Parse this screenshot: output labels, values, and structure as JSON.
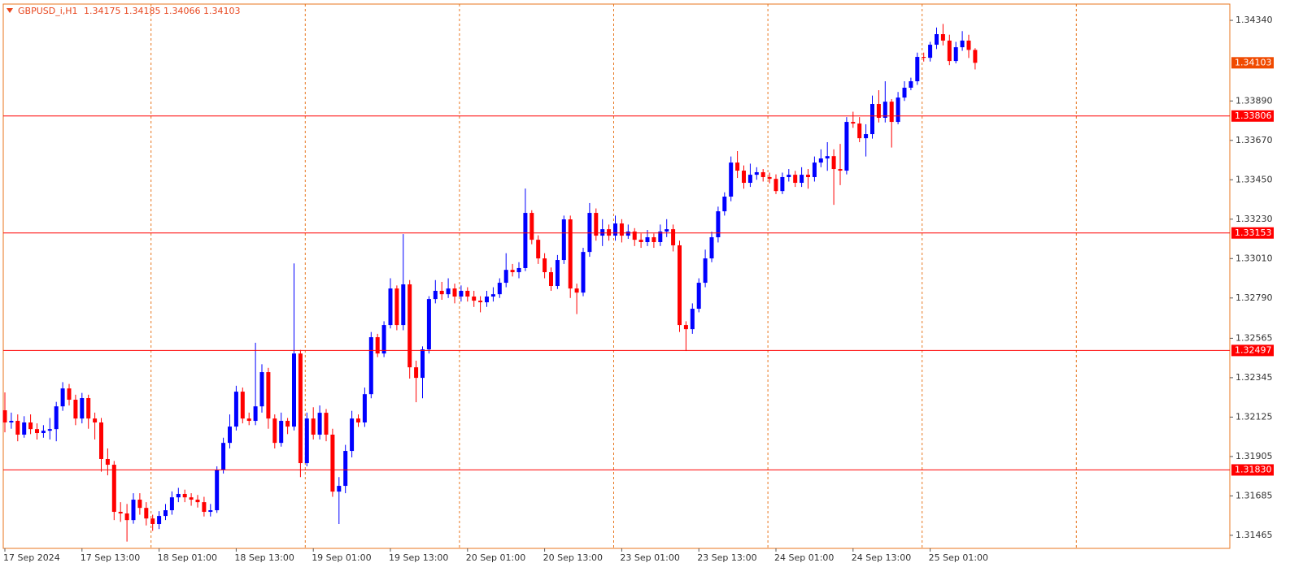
{
  "chart_data": {
    "type": "candlestick",
    "title": "GBPUSD_i,H1",
    "up_color": "#0000ff",
    "down_color": "#ff0000",
    "level_color": "#ff0000",
    "categories": [
      "17 Sep 2024",
      null,
      null,
      null,
      null,
      null,
      null,
      null,
      null,
      null,
      null,
      null,
      "17 Sep 13:00",
      null,
      null,
      null,
      null,
      null,
      null,
      null,
      null,
      null,
      null,
      null,
      "18 Sep 01:00",
      null,
      null,
      null,
      null,
      null,
      null,
      null,
      null,
      null,
      null,
      null,
      "18 Sep 13:00",
      null,
      null,
      null,
      null,
      null,
      null,
      null,
      null,
      null,
      null,
      null,
      "19 Sep 01:00",
      null,
      null,
      null,
      null,
      null,
      null,
      null,
      null,
      null,
      null,
      null,
      "19 Sep 13:00",
      null,
      null,
      null,
      null,
      null,
      null,
      null,
      null,
      null,
      null,
      null,
      "20 Sep 01:00",
      null,
      null,
      null,
      null,
      null,
      null,
      null,
      null,
      null,
      null,
      null,
      "20 Sep 13:00",
      null,
      null,
      null,
      null,
      null,
      null,
      null,
      null,
      null,
      null,
      null,
      "23 Sep 01:00",
      null,
      null,
      null,
      null,
      null,
      null,
      null,
      null,
      null,
      null,
      null,
      "23 Sep 13:00",
      null,
      null,
      null,
      null,
      null,
      null,
      null,
      null,
      null,
      null,
      null,
      "24 Sep 01:00",
      null,
      null,
      null,
      null,
      null,
      null,
      null,
      null,
      null,
      null,
      null,
      "24 Sep 13:00",
      null,
      null,
      null,
      null,
      null,
      null,
      null,
      null,
      null,
      null,
      null,
      "25 Sep 01:00",
      null,
      null,
      null,
      null,
      null,
      null,
      null
    ],
    "open": [
      1.32163,
      1.32095,
      1.32104,
      1.32027,
      1.32095,
      1.32058,
      1.32036,
      1.32049,
      1.32058,
      1.32185,
      1.32285,
      1.32222,
      1.32117,
      1.32231,
      1.32117,
      1.32095,
      1.31891,
      1.31859,
      1.31596,
      1.31587,
      1.3155,
      1.31664,
      1.31618,
      1.31559,
      1.31528,
      1.31573,
      1.31605,
      1.31677,
      1.31696,
      1.31677,
      1.31664,
      1.3165,
      1.31596,
      1.31605,
      1.31832,
      1.31981,
      1.32072,
      1.32267,
      1.32117,
      1.32104,
      1.32185,
      1.32376,
      1.32117,
      1.31981,
      1.32104,
      1.32072,
      1.3248,
      1.31868,
      1.32117,
      1.32027,
      1.32149,
      1.32027,
      1.31709,
      1.31741,
      1.31936,
      1.32117,
      1.32095,
      1.32253,
      1.32571,
      1.3248,
      1.32639,
      1.32843,
      1.32639,
      1.32866,
      1.32403,
      1.32344,
      1.32503,
      1.32784,
      1.3283,
      1.32811,
      1.32843,
      1.32798,
      1.3283,
      1.32798,
      1.32775,
      1.32766,
      1.32798,
      1.32811,
      1.32875,
      1.32947,
      1.32934,
      1.32957,
      1.33265,
      1.33115,
      1.33011,
      1.32934,
      1.32857,
      1.33002,
      1.33229,
      1.32843,
      1.3282,
      1.33047,
      1.33265,
      1.33138,
      1.33174,
      1.33138,
      1.33206,
      1.33138,
      1.33161,
      1.33115,
      1.33102,
      1.33129,
      1.33102,
      1.33161,
      1.33174,
      1.33084,
      1.32639,
      1.32616,
      1.3273,
      1.32875,
      1.33011,
      1.33129,
      1.33274,
      1.33356,
      1.33546,
      1.33501,
      1.33433,
      1.33478,
      1.33492,
      1.33465,
      1.33455,
      1.33387,
      1.33465,
      1.33478,
      1.33433,
      1.33478,
      1.33465,
      1.33546,
      1.33569,
      1.33582,
      1.3351,
      1.33501,
      1.33773,
      1.33764,
      1.33682,
      1.33705,
      1.33873,
      1.33796,
      1.33886,
      1.33773,
      1.33909,
      1.33964,
      1.34,
      1.34136,
      1.34131,
      1.34204,
      1.34263,
      1.34227,
      1.34113,
      1.3419,
      1.34227,
      1.34175
    ],
    "high": [
      1.32263,
      1.3215,
      1.3214,
      1.3213,
      1.3214,
      1.3209,
      1.3208,
      1.3212,
      1.3221,
      1.3232,
      1.3231,
      1.3225,
      1.3226,
      1.3225,
      1.3215,
      1.3212,
      1.3195,
      1.3188,
      1.3165,
      1.3164,
      1.317,
      1.317,
      1.3165,
      1.3158,
      1.316,
      1.3164,
      1.3171,
      1.3173,
      1.3172,
      1.317,
      1.3169,
      1.3168,
      1.3164,
      1.3185,
      1.3201,
      1.3214,
      1.323,
      1.3229,
      1.3215,
      1.3254,
      1.3242,
      1.324,
      1.3214,
      1.3215,
      1.3212,
      1.32983,
      1.325,
      1.3215,
      1.3218,
      1.3219,
      1.3217,
      1.3206,
      1.3179,
      1.3197,
      1.3216,
      1.3214,
      1.3229,
      1.326,
      1.3259,
      1.3266,
      1.329,
      1.3286,
      1.33147,
      1.3289,
      1.3244,
      1.3252,
      1.328,
      1.3289,
      1.3288,
      1.329,
      1.3287,
      1.3286,
      1.3285,
      1.3283,
      1.328,
      1.3283,
      1.3285,
      1.329,
      1.3304,
      1.3298,
      1.3299,
      1.33401,
      1.3328,
      1.3314,
      1.3304,
      1.3296,
      1.3303,
      1.3325,
      1.3325,
      1.3287,
      1.3307,
      1.3332,
      1.3329,
      1.3323,
      1.332,
      1.3325,
      1.3323,
      1.332,
      1.3318,
      1.3315,
      1.3317,
      1.3315,
      1.332,
      1.3323,
      1.332,
      1.3311,
      1.3266,
      1.3276,
      1.329,
      1.3306,
      1.3316,
      1.333,
      1.3338,
      1.3358,
      1.3361,
      1.3353,
      1.3354,
      1.3352,
      1.3351,
      1.3349,
      1.3348,
      1.3349,
      1.3351,
      1.335,
      1.3352,
      1.3351,
      1.3358,
      1.3362,
      1.3366,
      1.3362,
      1.3365,
      1.338,
      1.3383,
      1.338,
      1.3376,
      1.3392,
      1.3395,
      1.34,
      1.339,
      1.3394,
      1.34,
      1.3402,
      1.3416,
      1.3416,
      1.3422,
      1.343,
      1.3432,
      1.3426,
      1.3422,
      1.3428,
      1.3426,
      1.34185
    ],
    "low": [
      1.3204,
      1.3206,
      1.3199,
      1.3201,
      1.3203,
      1.32,
      1.3201,
      1.32,
      1.3199,
      1.3216,
      1.3219,
      1.3208,
      1.3209,
      1.3206,
      1.32,
      1.3182,
      1.318,
      1.3155,
      1.3154,
      1.3143,
      1.3153,
      1.3158,
      1.3152,
      1.3149,
      1.315,
      1.3155,
      1.3158,
      1.3165,
      1.3165,
      1.3163,
      1.3162,
      1.3157,
      1.3157,
      1.3159,
      1.3181,
      1.3195,
      1.3205,
      1.3209,
      1.3208,
      1.3208,
      1.3215,
      1.3206,
      1.3195,
      1.3196,
      1.3203,
      1.3205,
      1.3179,
      1.3185,
      1.32,
      1.32,
      1.3199,
      1.3168,
      1.31528,
      1.317,
      1.319,
      1.3207,
      1.3207,
      1.3223,
      1.3246,
      1.3246,
      1.3262,
      1.3261,
      1.3261,
      1.3234,
      1.32208,
      1.3223,
      1.3248,
      1.3276,
      1.3278,
      1.3279,
      1.3276,
      1.3277,
      1.3277,
      1.3274,
      1.3271,
      1.3274,
      1.3277,
      1.3279,
      1.3285,
      1.3291,
      1.329,
      1.3294,
      1.3309,
      1.3298,
      1.329,
      1.3283,
      1.3284,
      1.3298,
      1.3279,
      1.327,
      1.328,
      1.3302,
      1.3311,
      1.3308,
      1.3311,
      1.3311,
      1.331,
      1.3312,
      1.3308,
      1.3307,
      1.3308,
      1.3307,
      1.3308,
      1.3313,
      1.3305,
      1.326,
      1.32494,
      1.3259,
      1.3271,
      1.3285,
      1.3299,
      1.331,
      1.3325,
      1.3333,
      1.3346,
      1.334,
      1.3341,
      1.3345,
      1.3344,
      1.3343,
      1.3337,
      1.3337,
      1.3344,
      1.3341,
      1.3341,
      1.334,
      1.3344,
      1.3352,
      1.335,
      1.3331,
      1.3342,
      1.3348,
      1.3374,
      1.3366,
      1.3358,
      1.3368,
      1.3377,
      1.3377,
      1.3363,
      1.3376,
      1.3389,
      1.3395,
      1.3398,
      1.3411,
      1.3411,
      1.3418,
      1.342,
      1.3409,
      1.341,
      1.3417,
      1.3413,
      1.34066
    ],
    "close": [
      1.32095,
      1.32104,
      1.32027,
      1.32095,
      1.32058,
      1.32036,
      1.32049,
      1.32058,
      1.32185,
      1.32285,
      1.32222,
      1.32117,
      1.32231,
      1.32117,
      1.32095,
      1.31891,
      1.31859,
      1.31596,
      1.31587,
      1.3155,
      1.31664,
      1.31618,
      1.31559,
      1.31528,
      1.31573,
      1.31605,
      1.31677,
      1.31696,
      1.31677,
      1.31664,
      1.3165,
      1.31596,
      1.31605,
      1.31832,
      1.31981,
      1.32072,
      1.32267,
      1.32117,
      1.32104,
      1.32185,
      1.32376,
      1.32117,
      1.31981,
      1.32104,
      1.32072,
      1.3248,
      1.31868,
      1.32117,
      1.32027,
      1.32149,
      1.32027,
      1.31709,
      1.31741,
      1.31936,
      1.32117,
      1.32095,
      1.32253,
      1.32571,
      1.3248,
      1.32639,
      1.32843,
      1.32639,
      1.32866,
      1.32403,
      1.32344,
      1.32503,
      1.32784,
      1.3283,
      1.32811,
      1.32843,
      1.32798,
      1.3283,
      1.32798,
      1.32775,
      1.32766,
      1.32798,
      1.32811,
      1.32875,
      1.32947,
      1.32934,
      1.32957,
      1.33265,
      1.33115,
      1.33011,
      1.32934,
      1.32857,
      1.33002,
      1.33229,
      1.32843,
      1.3282,
      1.33047,
      1.33265,
      1.33138,
      1.33174,
      1.33138,
      1.33206,
      1.33138,
      1.33161,
      1.33115,
      1.33102,
      1.33129,
      1.33102,
      1.33161,
      1.33174,
      1.33084,
      1.32639,
      1.32616,
      1.3273,
      1.32875,
      1.33011,
      1.33129,
      1.33274,
      1.33356,
      1.33546,
      1.33501,
      1.33433,
      1.33478,
      1.33492,
      1.33465,
      1.33455,
      1.33387,
      1.33465,
      1.33478,
      1.33433,
      1.33478,
      1.33465,
      1.33546,
      1.33569,
      1.33582,
      1.3351,
      1.33501,
      1.33773,
      1.33764,
      1.33682,
      1.33705,
      1.33873,
      1.33796,
      1.33886,
      1.33773,
      1.33909,
      1.33964,
      1.34,
      1.34136,
      1.34131,
      1.34204,
      1.34263,
      1.34227,
      1.34113,
      1.3419,
      1.34227,
      1.34175,
      1.34103
    ],
    "levels": [
      1.33806,
      1.33153,
      1.32497,
      {
        "value": 1.3183,
        "label": "1.31830"
      }
    ],
    "ylim": [
      1.31392,
      1.34431
    ],
    "yticks": [
      {
        "value": 1.3434,
        "label": "1.34340"
      },
      {
        "value": 1.3389,
        "label": "1.33890"
      },
      {
        "value": 1.3367,
        "label": "1.33670"
      },
      {
        "value": 1.3345,
        "label": "1.33450"
      },
      {
        "value": 1.3323,
        "label": "1.33230"
      },
      {
        "value": 1.3301,
        "label": "1.33010"
      },
      {
        "value": 1.3279,
        "label": "1.32790"
      },
      1.32565,
      1.32345,
      1.32125,
      1.31905,
      1.31685,
      1.31465
    ]
  }
}
